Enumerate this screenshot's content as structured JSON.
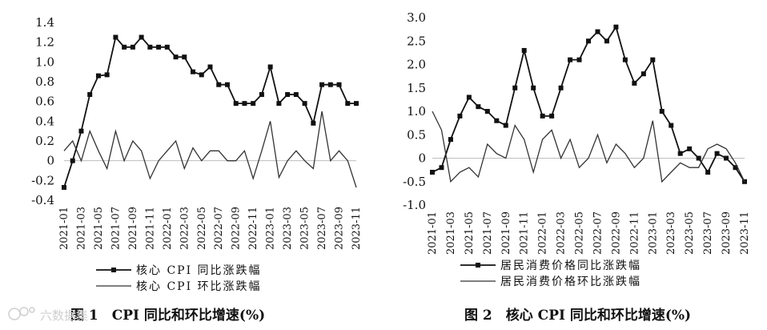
{
  "chart_data": [
    {
      "type": "line",
      "x": [
        "2021-01",
        "2021-02",
        "2021-03",
        "2021-04",
        "2021-05",
        "2021-06",
        "2021-07",
        "2021-08",
        "2021-09",
        "2021-10",
        "2021-11",
        "2021-12",
        "2022-01",
        "2022-02",
        "2022-03",
        "2022-04",
        "2022-05",
        "2022-06",
        "2022-07",
        "2022-08",
        "2022-09",
        "2022-10",
        "2022-11",
        "2022-12",
        "2023-01",
        "2023-02",
        "2023-03",
        "2023-04",
        "2023-05",
        "2023-06",
        "2023-07",
        "2023-08",
        "2023-09",
        "2023-10",
        "2023-11"
      ],
      "xtick_labels": [
        "2021-01",
        "2021-03",
        "2021-05",
        "2021-07",
        "2021-09",
        "2021-11",
        "2022-01",
        "2022-03",
        "2022-05",
        "2022-07",
        "2022-09",
        "2022-11",
        "2023-01",
        "2023-03",
        "2023-05",
        "2023-07",
        "2023-09",
        "2023-11"
      ],
      "ylim": [
        -0.4,
        1.4
      ],
      "yticks": [
        "1.4",
        "1.2",
        "1.0",
        "0.8",
        "0.6",
        "0.4",
        "0.2",
        "0",
        "-0.2",
        "-0.4"
      ],
      "caption": "图 1　CPI 同比和环比增速(%)",
      "series": [
        {
          "name": "核心 CPI 同比涨跌幅",
          "marker": "square",
          "values": [
            -0.27,
            0.0,
            0.3,
            0.67,
            0.86,
            0.87,
            1.25,
            1.15,
            1.15,
            1.25,
            1.15,
            1.15,
            1.15,
            1.05,
            1.05,
            0.9,
            0.87,
            0.95,
            0.77,
            0.77,
            0.58,
            0.58,
            0.58,
            0.67,
            0.95,
            0.58,
            0.67,
            0.67,
            0.58,
            0.38,
            0.77,
            0.77,
            0.77,
            0.58,
            0.58
          ]
        },
        {
          "name": "核心 CPI 环比涨跌幅",
          "marker": "none",
          "values": [
            0.1,
            0.2,
            0.0,
            0.3,
            0.1,
            -0.08,
            0.3,
            0.0,
            0.2,
            0.1,
            -0.18,
            0.0,
            0.1,
            0.2,
            -0.08,
            0.13,
            0.0,
            0.1,
            0.1,
            0.0,
            0.0,
            0.1,
            -0.18,
            0.1,
            0.4,
            -0.17,
            0.0,
            0.1,
            0.0,
            -0.08,
            0.5,
            0.0,
            0.1,
            0.0,
            -0.27
          ]
        }
      ]
    },
    {
      "type": "line",
      "x": [
        "2021-01",
        "2021-02",
        "2021-03",
        "2021-04",
        "2021-05",
        "2021-06",
        "2021-07",
        "2021-08",
        "2021-09",
        "2021-10",
        "2021-11",
        "2021-12",
        "2022-01",
        "2022-02",
        "2022-03",
        "2022-04",
        "2022-05",
        "2022-06",
        "2022-07",
        "2022-08",
        "2022-09",
        "2022-10",
        "2022-11",
        "2022-12",
        "2023-01",
        "2023-02",
        "2023-03",
        "2023-04",
        "2023-05",
        "2023-06",
        "2023-07",
        "2023-08",
        "2023-09",
        "2023-10",
        "2023-11"
      ],
      "xtick_labels": [
        "2021-01",
        "2021-03",
        "2021-05",
        "2021-07",
        "2021-09",
        "2021-11",
        "2022-01",
        "2022-03",
        "2022-05",
        "2022-07",
        "2022-09",
        "2022-11",
        "2023-01",
        "2023-03",
        "2023-05",
        "2023-07",
        "2023-09",
        "2023-11"
      ],
      "ylim": [
        -1.0,
        3.0
      ],
      "yticks": [
        "3.0",
        "2.5",
        "2.0",
        "1.5",
        "1.0",
        "0.5",
        "0",
        "-0.5",
        "-1.0"
      ],
      "caption": "图 2　核心 CPI 同比和环比增速(%)",
      "series": [
        {
          "name": "居民消费价格同比涨跌幅",
          "marker": "square",
          "values": [
            -0.3,
            -0.2,
            0.4,
            0.9,
            1.3,
            1.1,
            1.0,
            0.8,
            0.7,
            1.5,
            2.3,
            1.5,
            0.9,
            0.9,
            1.5,
            2.1,
            2.1,
            2.5,
            2.7,
            2.5,
            2.8,
            2.1,
            1.6,
            1.8,
            2.1,
            1.0,
            0.7,
            0.1,
            0.2,
            0.0,
            -0.3,
            0.1,
            0.0,
            -0.2,
            -0.5
          ]
        },
        {
          "name": "居民消费价格环比涨跌幅",
          "marker": "none",
          "values": [
            1.0,
            0.6,
            -0.5,
            -0.3,
            -0.2,
            -0.4,
            0.3,
            0.1,
            0.0,
            0.7,
            0.4,
            -0.3,
            0.4,
            0.6,
            0.0,
            0.4,
            -0.2,
            0.0,
            0.5,
            -0.1,
            0.3,
            0.1,
            -0.2,
            0.0,
            0.8,
            -0.5,
            -0.3,
            -0.1,
            -0.2,
            -0.2,
            0.2,
            0.3,
            0.2,
            -0.1,
            -0.5
          ]
        }
      ]
    }
  ],
  "watermark": {
    "icon": "watermark-logo-icon",
    "text": "六数据集"
  },
  "colors": {
    "line": "#111111",
    "secondary_line": "#333333",
    "zero_line": "#bdbdbd"
  }
}
